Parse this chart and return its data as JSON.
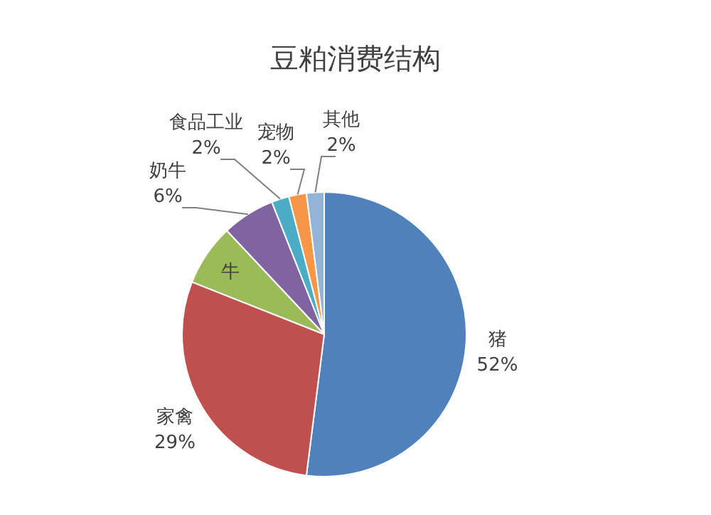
{
  "chart_data": {
    "type": "pie",
    "title": "豆粕消费结构",
    "categories": [
      "猪",
      "家禽",
      "牛",
      "奶牛",
      "食品工业",
      "宠物",
      "其他"
    ],
    "values": [
      52,
      29,
      7,
      6,
      2,
      2,
      2
    ],
    "colors": [
      "#4f81bd",
      "#c0504d",
      "#9bbb59",
      "#8064a2",
      "#4bacc6",
      "#f79646",
      "#95b3d7"
    ],
    "value_labels": [
      "52%",
      "29%",
      null,
      "6%",
      "2%",
      "2%",
      "2%"
    ]
  }
}
